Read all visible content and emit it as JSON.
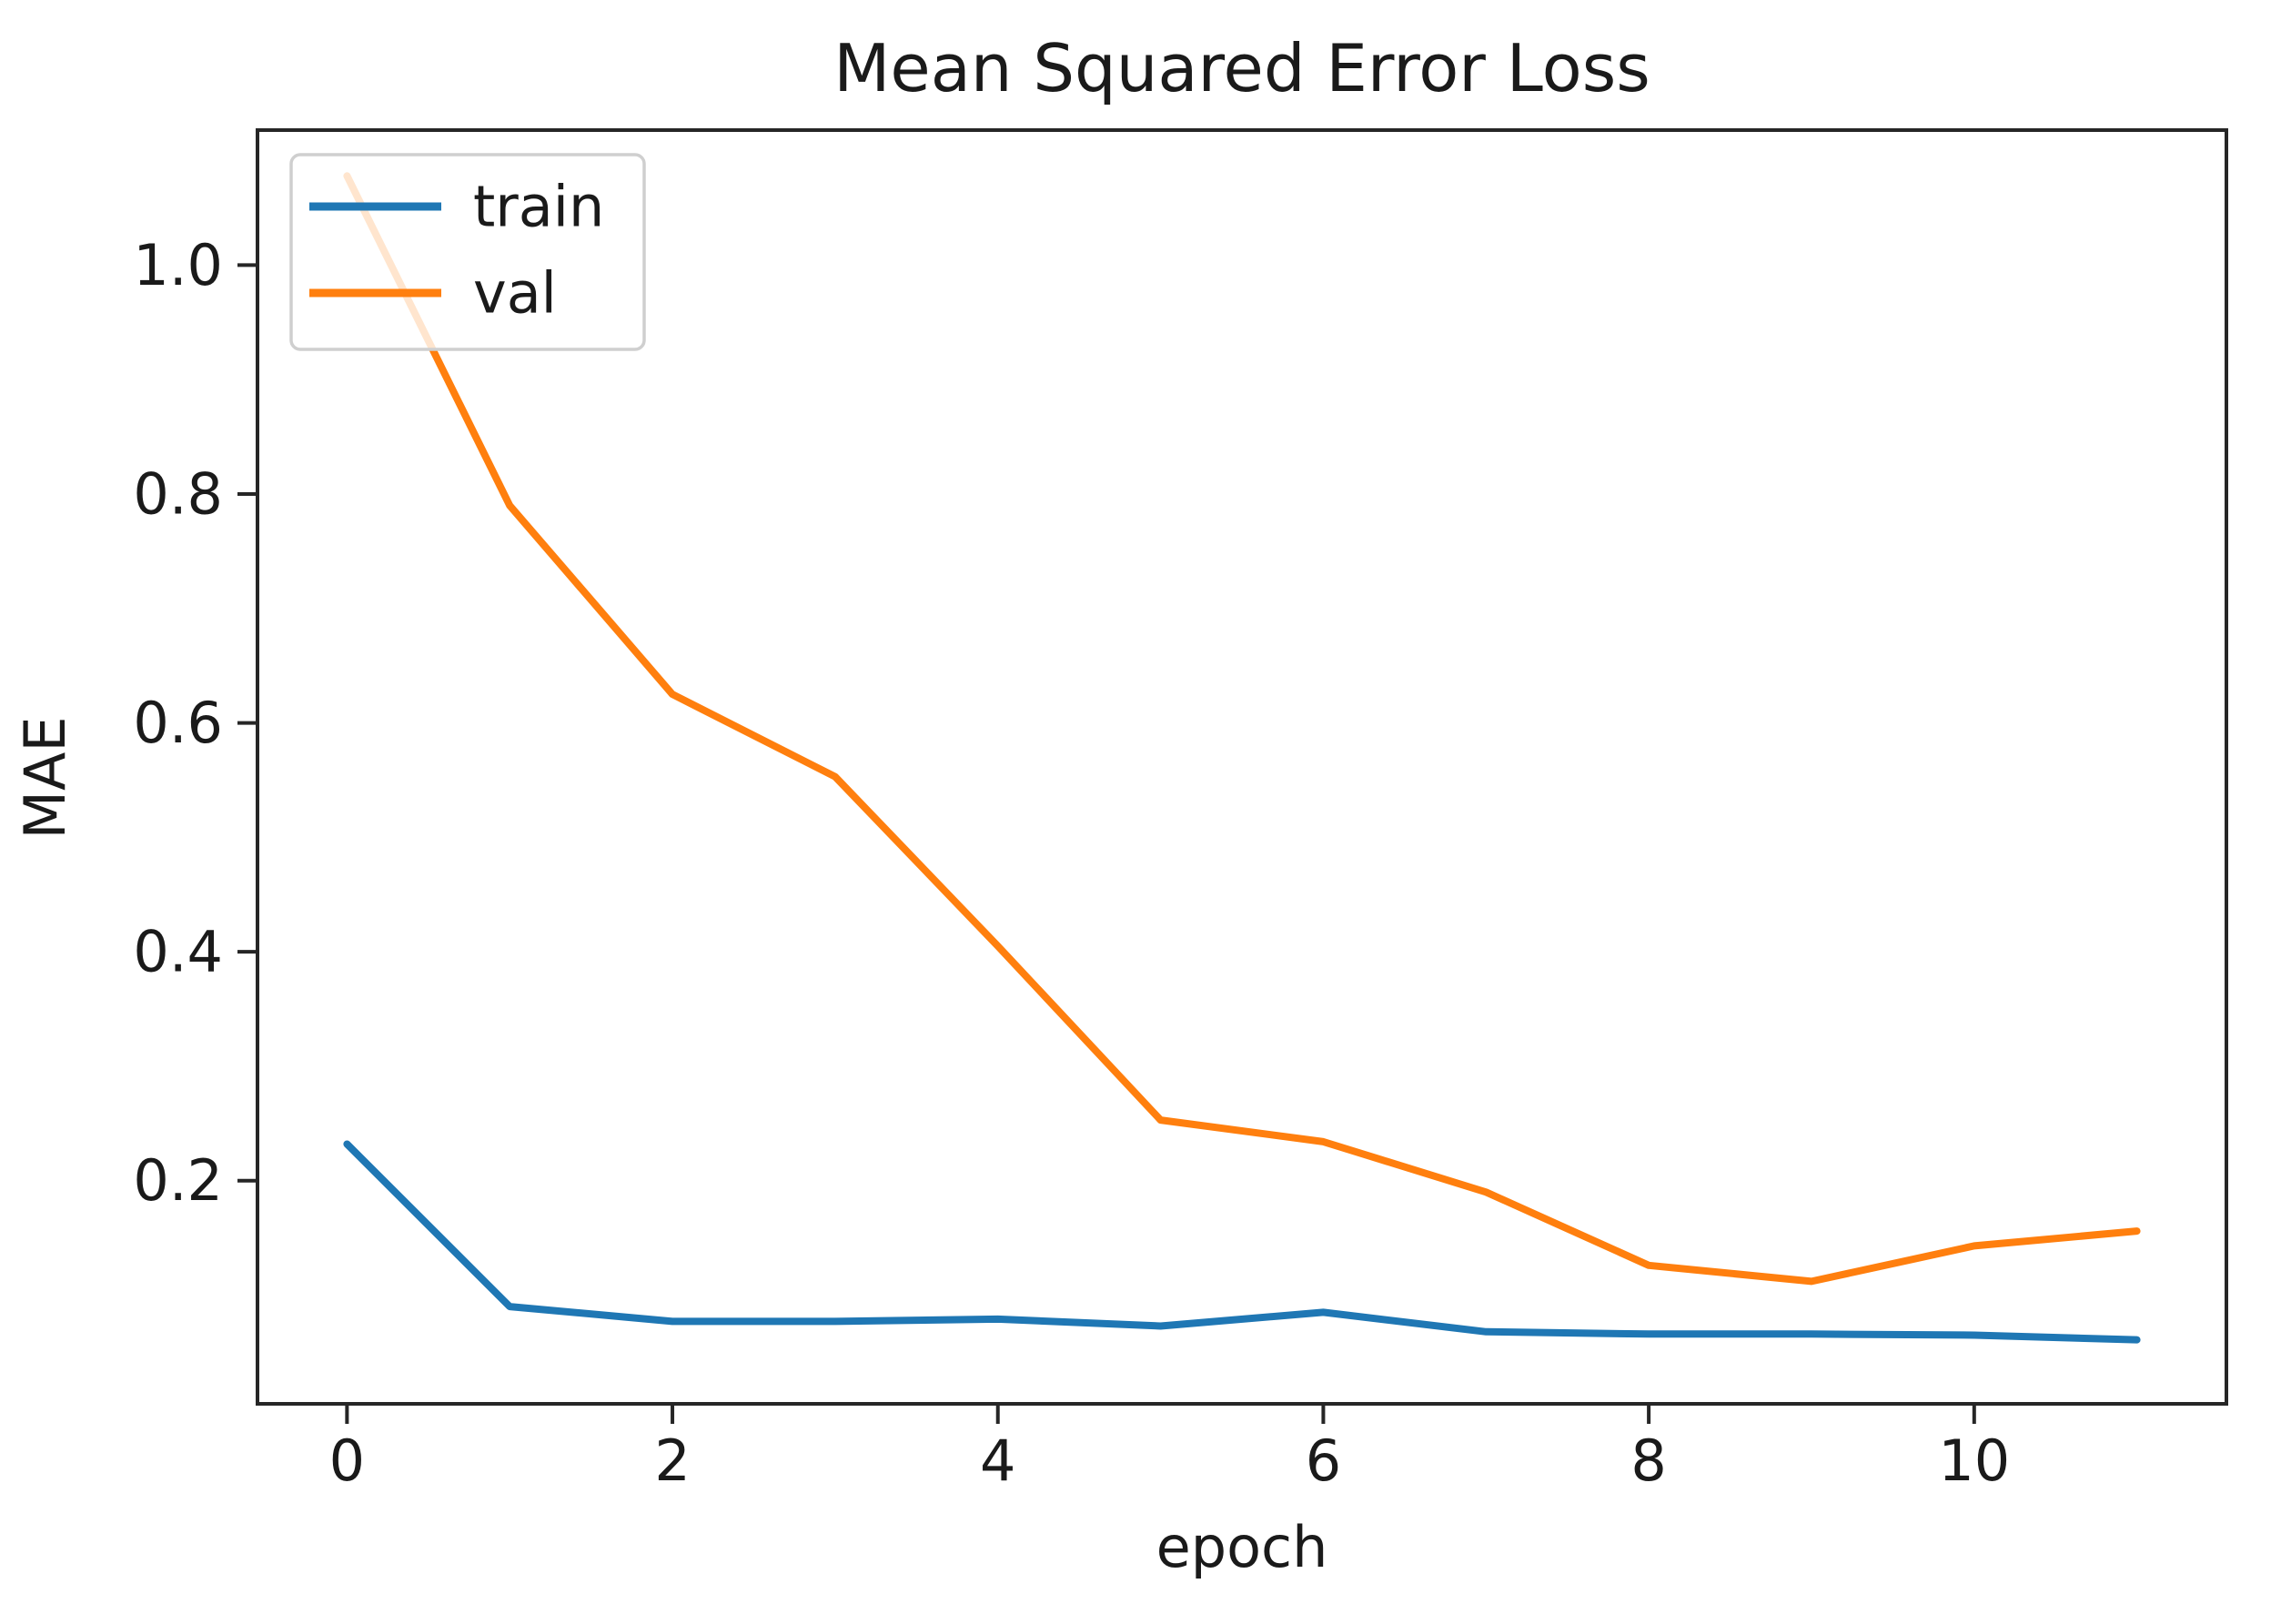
{
  "chart_data": {
    "type": "line",
    "title": "Mean Squared Error Loss",
    "xlabel": "epoch",
    "ylabel": "MAE",
    "x": [
      0,
      1,
      2,
      3,
      4,
      5,
      6,
      7,
      8,
      9,
      10,
      11
    ],
    "series": [
      {
        "name": "train",
        "color": "#1f77b4",
        "values": [
          0.232,
          0.09,
          0.077,
          0.077,
          0.079,
          0.073,
          0.085,
          0.068,
          0.066,
          0.066,
          0.065,
          0.061
        ]
      },
      {
        "name": "val",
        "color": "#ff7f0e",
        "values": [
          1.078,
          0.79,
          0.625,
          0.553,
          0.405,
          0.253,
          0.234,
          0.19,
          0.126,
          0.112,
          0.143,
          0.156
        ]
      }
    ],
    "xlim": [
      -0.55,
      11.55
    ],
    "ylim": [
      0.005,
      1.118
    ],
    "xticks": {
      "values": [
        0,
        2,
        4,
        6,
        8,
        10
      ],
      "labels": [
        "0",
        "2",
        "4",
        "6",
        "8",
        "10"
      ]
    },
    "yticks": {
      "values": [
        0.2,
        0.4,
        0.6,
        0.8,
        1.0
      ],
      "labels": [
        "0.2",
        "0.4",
        "0.6",
        "0.8",
        "1.0"
      ]
    },
    "legend": {
      "position": "upper left",
      "entries": [
        "train",
        "val"
      ]
    },
    "grid": false,
    "background": "#ffffff",
    "spine_color": "#262626",
    "text_color": "#1a1a1a",
    "legend_border_color": "#cfcfcf"
  }
}
